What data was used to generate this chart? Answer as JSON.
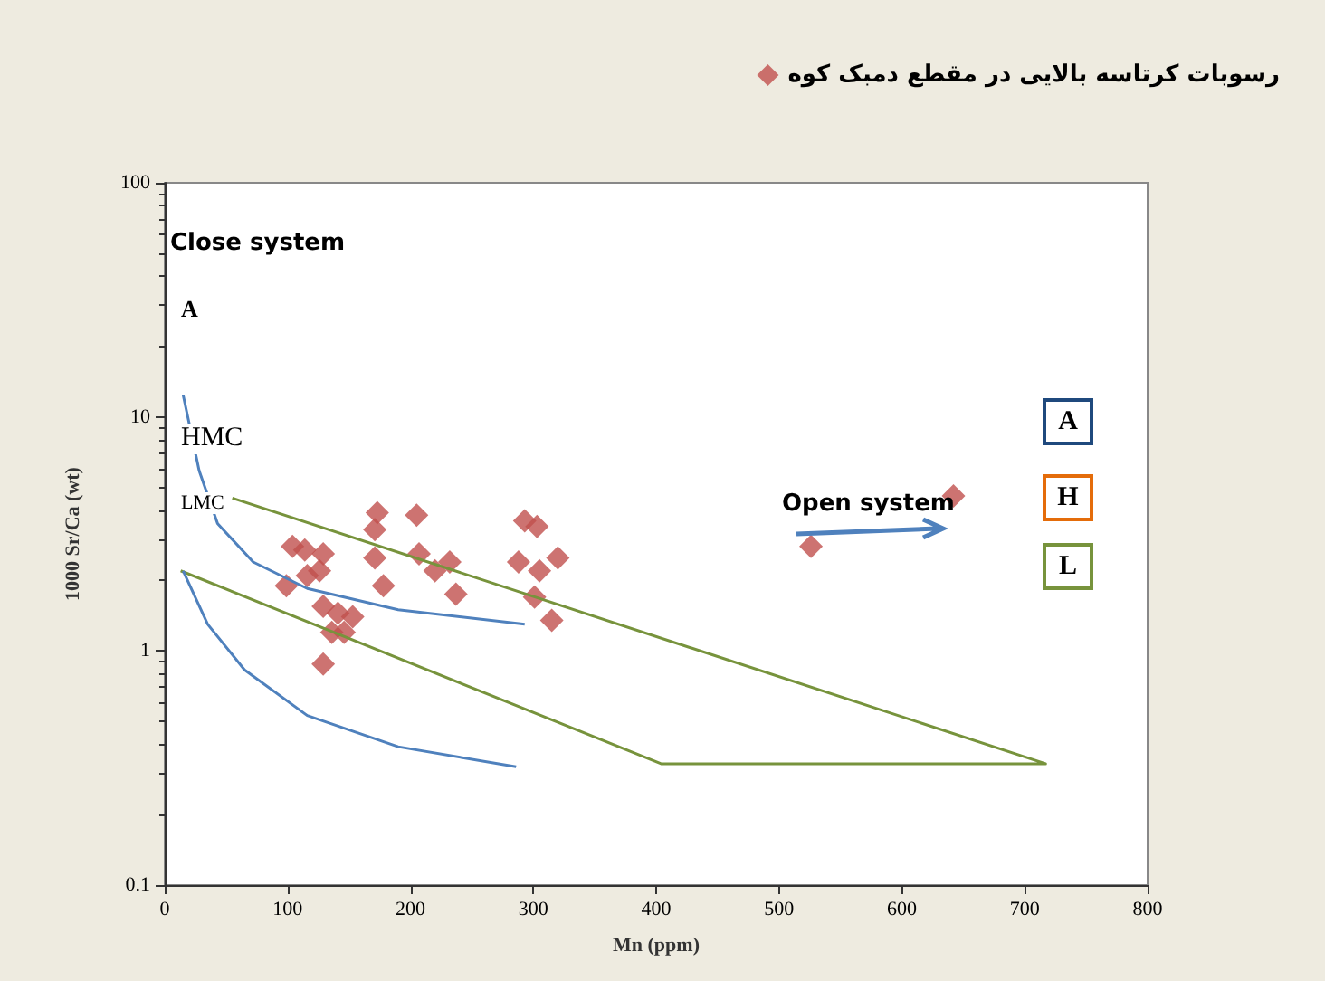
{
  "chart_data": {
    "type": "scatter",
    "xlabel": "Mn (ppm)",
    "ylabel": "1000 Sr/Ca (wt)",
    "xlim": [
      0,
      800
    ],
    "xticks": [
      0,
      100,
      200,
      300,
      400,
      500,
      600,
      700,
      800
    ],
    "ylim": [
      0.1,
      100
    ],
    "yticks": [
      0.1,
      1,
      10,
      100
    ],
    "log": "y",
    "grid": false,
    "legend": "top right",
    "marker": "diamond",
    "annotations": [
      "Close system",
      "Open system",
      "A",
      "HMC",
      "LMC",
      "A",
      "H",
      "L"
    ],
    "series": [
      {
        "name": "رسوبات کرتاسه بالایی در مقطع دمبک کوه",
        "color": "#c0504d",
        "x": [
          173,
          205,
          171,
          293,
          303,
          104,
          114,
          129,
          171,
          207,
          220,
          232,
          288,
          320,
          305,
          116,
          126,
          99,
          178,
          237,
          301,
          129,
          141,
          153,
          315,
          136,
          146,
          129,
          526,
          642
        ],
        "values": [
          3.9,
          3.8,
          3.3,
          3.6,
          3.4,
          2.8,
          2.7,
          2.6,
          2.5,
          2.6,
          2.2,
          2.4,
          2.4,
          2.5,
          2.2,
          2.1,
          2.2,
          1.9,
          1.9,
          1.75,
          1.7,
          1.55,
          1.45,
          1.4,
          1.35,
          1.2,
          1.2,
          0.88,
          2.8,
          4.6
        ]
      },
      {
        "type": "line",
        "marker": "none",
        "color": "#77933c",
        "x": [
          13,
          404,
          717,
          55
        ],
        "values": [
          2.2,
          0.33,
          0.33,
          4.5
        ]
      },
      {
        "type": "line",
        "marker": "none",
        "color": "#4f81bd",
        "x": [
          15,
          28,
          43,
          72,
          116,
          190,
          293
        ],
        "values": [
          12.4,
          5.9,
          3.5,
          2.4,
          1.85,
          1.5,
          1.3
        ]
      },
      {
        "type": "line",
        "marker": "none",
        "color": "#4f81bd",
        "x": [
          15,
          35,
          65,
          116,
          190,
          286
        ],
        "values": [
          2.2,
          1.3,
          0.83,
          0.53,
          0.39,
          0.32
        ]
      }
    ]
  }
}
